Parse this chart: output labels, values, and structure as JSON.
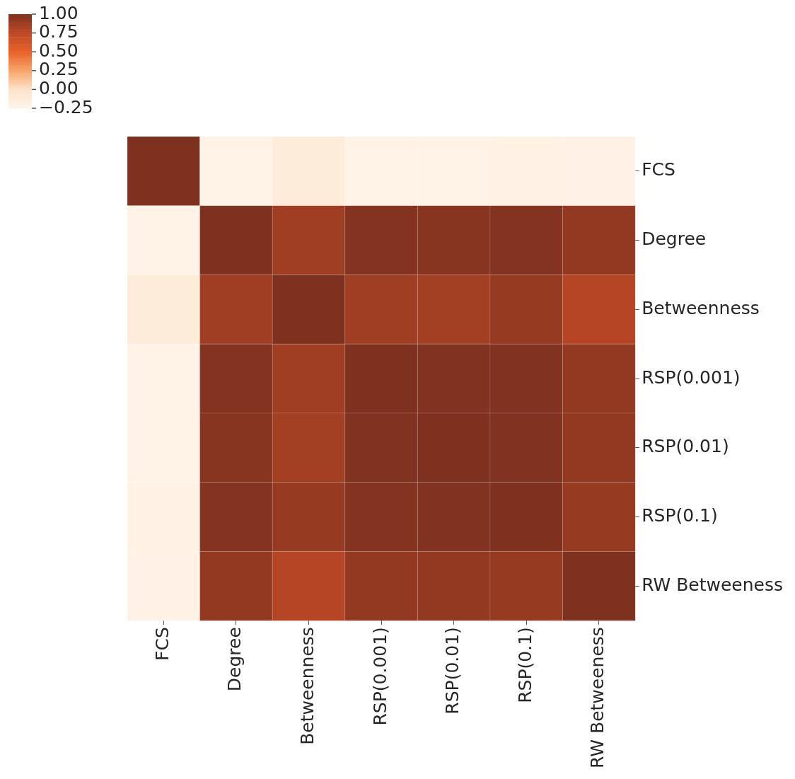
{
  "chart_data": {
    "type": "heatmap",
    "categories": [
      "FCS",
      "Degree",
      "Betweenness",
      "RSP(0.001)",
      "RSP(0.01)",
      "RSP(0.1)",
      "RW Betweeness"
    ],
    "y_categories": [
      "FCS",
      "Degree",
      "Betweenness",
      "RSP(0.001)",
      "RSP(0.01)",
      "RSP(0.1)",
      "RW Betweeness"
    ],
    "cells": [
      [
        1,
        -0.22,
        -0.12,
        -0.21,
        -0.21,
        -0.19,
        -0.2
      ],
      [
        -0.22,
        1,
        0.87,
        0.98,
        0.97,
        0.98,
        0.92
      ],
      [
        -0.12,
        0.87,
        1,
        0.87,
        0.86,
        0.91,
        0.79
      ],
      [
        -0.21,
        0.98,
        0.87,
        1,
        0.99,
        0.99,
        0.92
      ],
      [
        -0.21,
        0.97,
        0.86,
        0.99,
        1,
        0.99,
        0.92
      ],
      [
        -0.19,
        0.98,
        0.91,
        0.98,
        0.99,
        1,
        0.91
      ],
      [
        -0.2,
        0.92,
        0.79,
        0.92,
        0.92,
        0.91,
        1
      ]
    ],
    "clim": [
      -0.25,
      1.0
    ],
    "cticks": [
      {
        "value": 1.0,
        "label": "1.00"
      },
      {
        "value": 0.75,
        "label": "0.75"
      },
      {
        "value": 0.5,
        "label": "0.50"
      },
      {
        "value": 0.25,
        "label": "0.25"
      },
      {
        "value": 0.0,
        "label": "0.00"
      },
      {
        "value": -0.25,
        "label": "−0.25"
      }
    ]
  }
}
